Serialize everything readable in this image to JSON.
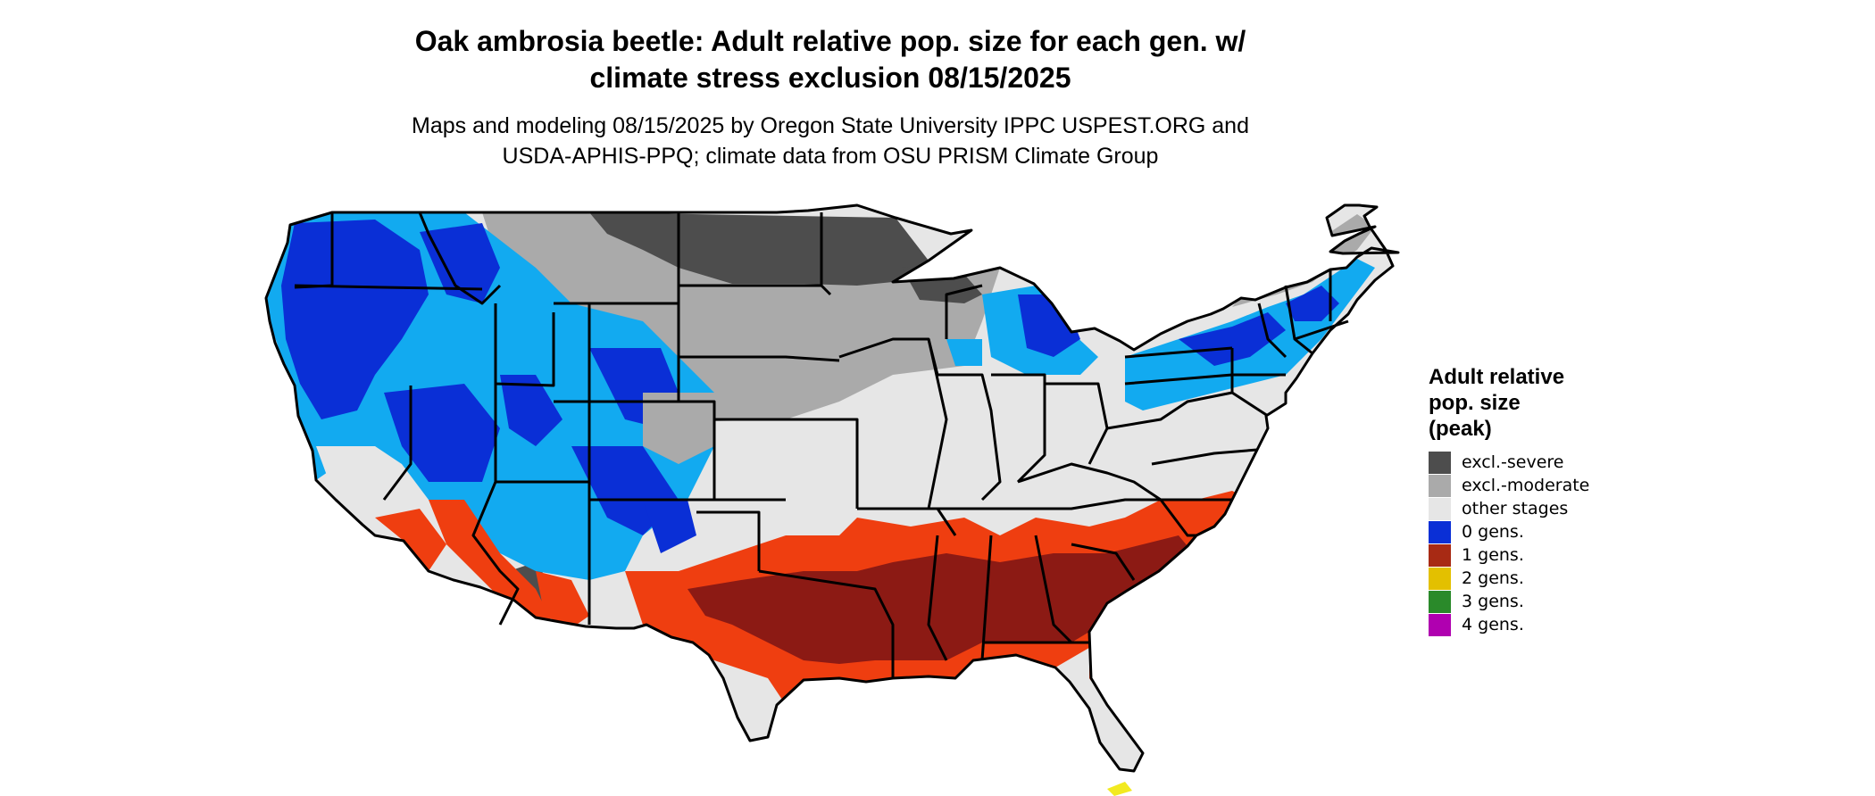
{
  "title": {
    "line1": "Oak ambrosia beetle: Adult relative pop. size for each gen. w/",
    "line2": "climate stress exclusion 08/15/2025"
  },
  "subtitle": {
    "line1": "Maps and modeling 08/15/2025 by Oregon State University IPPC USPEST.ORG and",
    "line2": "USDA-APHIS-PPQ; climate data from OSU PRISM Climate Group"
  },
  "legend": {
    "title_line1": "Adult relative",
    "title_line2": "pop. size",
    "title_line3": "(peak)",
    "items": [
      {
        "label": "excl.-severe",
        "color": "#4d4d4d"
      },
      {
        "label": "excl.-moderate",
        "color": "#aaaaaa"
      },
      {
        "label": "other stages",
        "color": "#e6e6e6"
      },
      {
        "label": "0 gens.",
        "color": "#0a2fd6"
      },
      {
        "label": "1 gens.",
        "color": "#a82a14"
      },
      {
        "label": "2 gens.",
        "color": "#e3c000"
      },
      {
        "label": "3 gens.",
        "color": "#2a8a2a"
      },
      {
        "label": "4 gens.",
        "color": "#b000b0"
      }
    ]
  },
  "map_colors": {
    "lightblue": "#12aaf0",
    "blue": "#0a2fd6",
    "orange": "#ef3e10",
    "darkred": "#8c1a14",
    "severe": "#4d4d4d",
    "moderate": "#aaaaaa",
    "other": "#e6e6e6",
    "yellow": "#f2ea20"
  }
}
